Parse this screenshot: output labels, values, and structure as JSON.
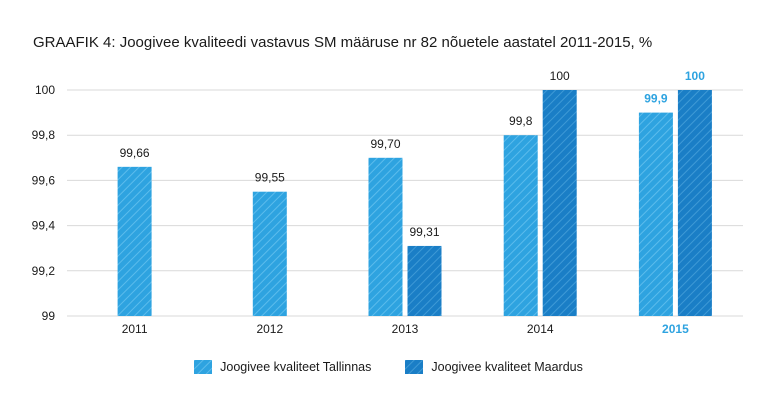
{
  "title": "GRAAFIK 4: Joogivee kvaliteedi vastavus SM määruse nr 82 nõuetele aastatel 2011-2015, %",
  "colors": {
    "series_tallinn": "#2ea3e0",
    "series_maardus": "#1a7ec6",
    "highlight": "#2ea3e0",
    "grid": "#d9d9d9",
    "text": "#1a1a1a"
  },
  "chart_data": {
    "type": "bar",
    "title": "GRAAFIK 4: Joogivee kvaliteedi vastavus SM määruse nr 82 nõuetele aastatel 2011-2015, %",
    "categories": [
      "2011",
      "2012",
      "2013",
      "2014",
      "2015"
    ],
    "highlight_category": "2015",
    "ylim": [
      99,
      100
    ],
    "yticks": [
      99,
      99.2,
      99.4,
      99.6,
      99.8,
      100
    ],
    "ytick_labels": [
      "99",
      "99,2",
      "99,4",
      "99,6",
      "99,8",
      "100"
    ],
    "grid": true,
    "legend_position": "bottom",
    "series": [
      {
        "name": "Joogivee kvaliteet Tallinnas",
        "values": [
          99.66,
          99.55,
          99.7,
          99.8,
          99.9
        ],
        "labels": [
          "99,66",
          "99,55",
          "99,70",
          "99,8",
          "99,9"
        ]
      },
      {
        "name": "Joogivee kvaliteet Maardus",
        "values": [
          null,
          null,
          99.31,
          100,
          100
        ],
        "labels": [
          null,
          null,
          "99,31",
          "100",
          "100"
        ]
      }
    ]
  }
}
